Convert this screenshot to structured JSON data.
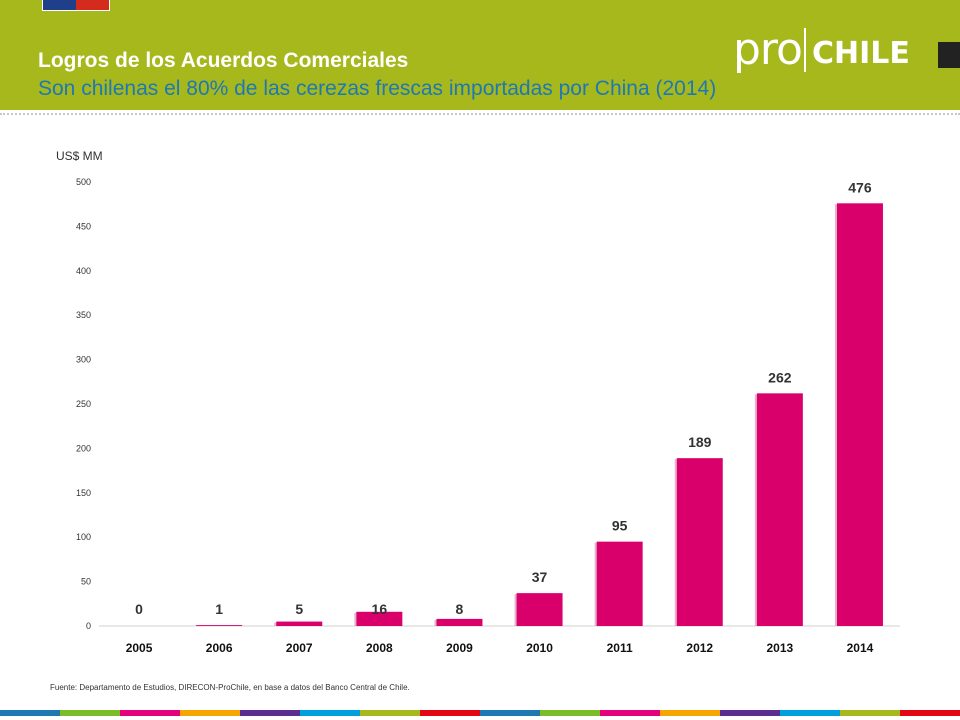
{
  "header": {
    "title": "Logros de los Acuerdos Comerciales",
    "subtitle": "Son chilenas el 80% de las cerezas frescas importadas por China (2014)",
    "logo_pro": "pro",
    "logo_chile": "CHILE",
    "accent_color": "#a6b81c",
    "subtitle_color": "#1e78b4"
  },
  "chart_data": {
    "type": "bar",
    "title": "",
    "ylabel": "US$ MM",
    "xlabel": "",
    "categories": [
      "2005",
      "2006",
      "2007",
      "2008",
      "2009",
      "2010",
      "2011",
      "2012",
      "2013",
      "2014"
    ],
    "values": [
      0,
      1,
      5,
      16,
      8,
      37,
      95,
      189,
      262,
      476
    ],
    "ylim": [
      0,
      500
    ],
    "yticks": [
      0,
      50,
      100,
      150,
      200,
      250,
      300,
      350,
      400,
      450,
      500
    ],
    "bar_color": "#d9006c",
    "grid": false,
    "legend": "none"
  },
  "footer": {
    "source": "Fuente: Departamento de Estudios, DIRECON-ProChile, en base a datos del Banco Central de Chile.",
    "stripe_colors": [
      "#1e78b4",
      "#7bbd27",
      "#e5007e",
      "#f7a600",
      "#5c2d91",
      "#00a0dc",
      "#a6b81c",
      "#e30613",
      "#1e78b4",
      "#7bbd27",
      "#e5007e",
      "#f7a600",
      "#5c2d91",
      "#00a0dc",
      "#a6b81c",
      "#e30613"
    ]
  }
}
